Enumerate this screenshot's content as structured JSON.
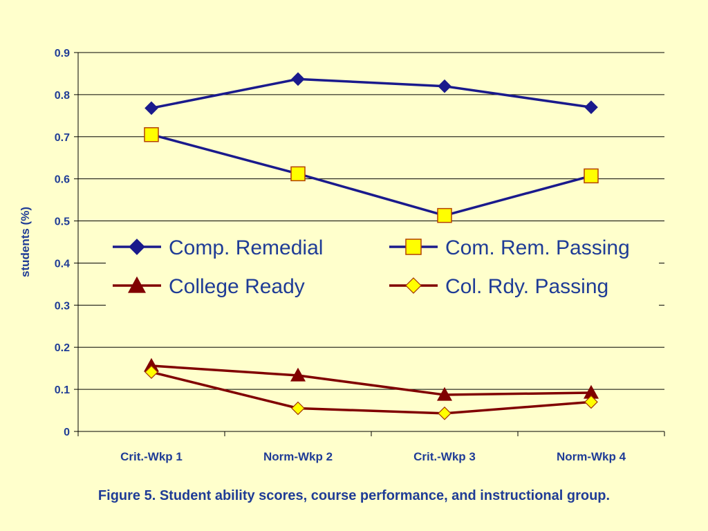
{
  "caption": "Figure 5. Student ability scores, course performance, and instructional group.",
  "chart_data": {
    "type": "line",
    "ylabel": "students (%)",
    "xlabel": "",
    "ylim": [
      0,
      0.9
    ],
    "yticks": [
      "0",
      "0.1",
      "0.2",
      "0.3",
      "0.4",
      "0.5",
      "0.6",
      "0.7",
      "0.8",
      "0.9"
    ],
    "grid": true,
    "categories": [
      "Crit.-Wkp  1",
      "Norm-Wkp 2",
      "Crit.-Wkp  3",
      "Norm-Wkp 4"
    ],
    "legend_position": "center",
    "series": [
      {
        "name": "Comp. Remedial",
        "values": [
          0.768,
          0.837,
          0.82,
          0.77
        ],
        "color": "#1a1a8c",
        "marker": "diamond",
        "marker_fill": "#1a1a8c"
      },
      {
        "name": "Com. Rem. Passing",
        "values": [
          0.705,
          0.612,
          0.513,
          0.607
        ],
        "color": "#1a1a8c",
        "marker": "square",
        "marker_fill": "#ffff00"
      },
      {
        "name": "College Ready",
        "values": [
          0.156,
          0.133,
          0.087,
          0.092
        ],
        "color": "#800000",
        "marker": "triangle",
        "marker_fill": "#800000"
      },
      {
        "name": "Col. Rdy. Passing",
        "values": [
          0.141,
          0.055,
          0.043,
          0.07
        ],
        "color": "#800000",
        "marker": "diamond",
        "marker_fill": "#ffff00"
      }
    ]
  }
}
